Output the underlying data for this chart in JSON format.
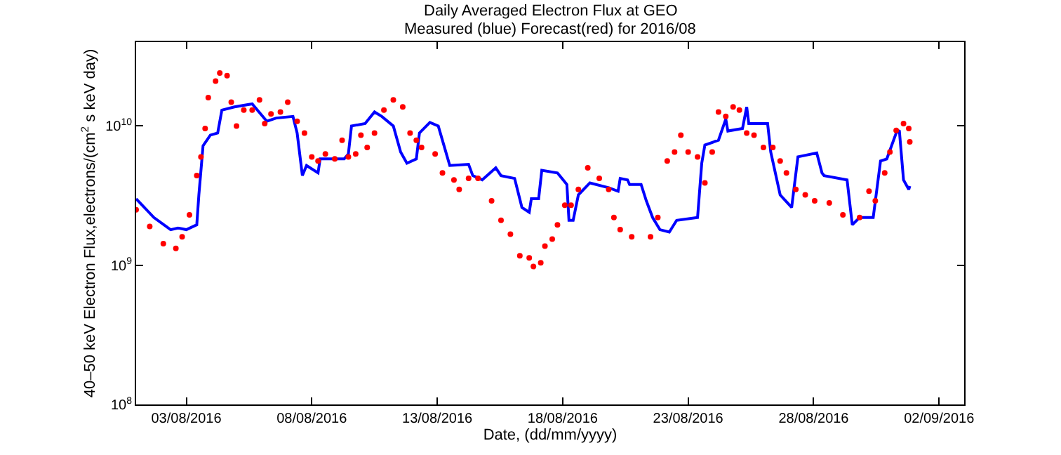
{
  "chart_data": {
    "type": "line",
    "title": "Daily Averaged Electron Flux at GEO",
    "subtitle": "Measured (blue) Forecast(red) for 2016/08",
    "xlabel": "Date, (dd/mm/yyyy)",
    "ylabel": "40–50 keV Electron Flux,electrons/(cm$^{2}$ s keV day)",
    "log": "y",
    "grid": false,
    "xlim": [
      "2016-08-01",
      "2016-09-03"
    ],
    "xticks": [
      {
        "value": "2016-08-03",
        "label": "03/08/2016"
      },
      {
        "value": "2016-08-08",
        "label": "08/08/2016"
      },
      {
        "value": "2016-08-13",
        "label": "13/08/2016"
      },
      {
        "value": "2016-08-18",
        "label": "18/08/2016"
      },
      {
        "value": "2016-08-23",
        "label": "23/08/2016"
      },
      {
        "value": "2016-08-28",
        "label": "28/08/2016"
      },
      {
        "value": "2016-09-02",
        "label": "02/09/2016"
      }
    ],
    "ylim": [
      100000000.0,
      40000000000.0
    ],
    "yticks": [
      {
        "value": 100000000.0,
        "label": "10$^{8}$"
      },
      {
        "value": 1000000000.0,
        "label": "10$^{9}$"
      },
      {
        "value": 10000000000.0,
        "label": "10$^{10}$"
      }
    ],
    "series": [
      {
        "color": "#0000ff",
        "line_style": "solid",
        "marker": "none",
        "x": [
          "2016-08-01T00:00",
          "2016-08-01T17:00",
          "2016-08-02T09:00",
          "2016-08-02T16:00",
          "2016-08-03T00:00",
          "2016-08-03T10:00",
          "2016-08-03T12:00",
          "2016-08-03T16:00",
          "2016-08-03T23:00",
          "2016-08-04T06:00",
          "2016-08-04T10:00",
          "2016-08-04T22:00",
          "2016-08-05T15:00",
          "2016-08-06T05:00",
          "2016-08-06T14:00",
          "2016-08-07T06:00",
          "2016-08-07T10:00",
          "2016-08-07T15:00",
          "2016-08-07T19:00",
          "2016-08-08T06:00",
          "2016-08-08T08:00",
          "2016-08-09T07:00",
          "2016-08-09T11:00",
          "2016-08-09T14:00",
          "2016-08-10T03:00",
          "2016-08-10T12:00",
          "2016-08-10T19:00",
          "2016-08-11T06:00",
          "2016-08-11T13:00",
          "2016-08-11T19:00",
          "2016-08-12T04:00",
          "2016-08-12T07:00",
          "2016-08-12T17:00",
          "2016-08-13T01:00",
          "2016-08-13T07:00",
          "2016-08-13T12:00",
          "2016-08-14T06:00",
          "2016-08-14T10:00",
          "2016-08-14T19:00",
          "2016-08-15T08:00",
          "2016-08-15T13:00",
          "2016-08-16T02:00",
          "2016-08-16T09:00",
          "2016-08-16T16:00",
          "2016-08-16T18:00",
          "2016-08-17T01:00",
          "2016-08-17T04:00",
          "2016-08-17T19:00",
          "2016-08-18T04:00",
          "2016-08-18T06:00",
          "2016-08-18T10:00",
          "2016-08-18T15:00",
          "2016-08-19T02:00",
          "2016-08-19T20:00",
          "2016-08-20T05:00",
          "2016-08-20T07:00",
          "2016-08-20T14:00",
          "2016-08-20T16:00",
          "2016-08-21T03:00",
          "2016-08-21T08:00",
          "2016-08-21T14:00",
          "2016-08-21T21:00",
          "2016-08-22T06:00",
          "2016-08-22T13:00",
          "2016-08-23T09:00",
          "2016-08-23T13:00",
          "2016-08-23T16:00",
          "2016-08-24T05:00",
          "2016-08-24T12:00",
          "2016-08-24T14:00",
          "2016-08-25T04:00",
          "2016-08-25T08:00",
          "2016-08-25T10:00",
          "2016-08-26T04:00",
          "2016-08-26T07:00",
          "2016-08-26T16:00",
          "2016-08-27T03:00",
          "2016-08-27T09:00",
          "2016-08-28T03:00",
          "2016-08-28T08:00",
          "2016-08-28T10:00",
          "2016-08-29T08:00",
          "2016-08-29T13:00",
          "2016-08-29T20:00",
          "2016-08-30T09:00",
          "2016-08-30T16:00",
          "2016-08-30T22:00",
          "2016-08-31T07:00",
          "2016-08-31T10:00",
          "2016-08-31T14:00",
          "2016-08-31T19:00",
          "2016-08-31T20:00"
        ],
        "values": [
          3000000000.0,
          2200000000.0,
          1800000000.0,
          1850000000.0,
          1800000000.0,
          1950000000.0,
          3200000000.0,
          7200000000.0,
          8600000000.0,
          8900000000.0,
          13000000000.0,
          13700000000.0,
          14400000000.0,
          10800000000.0,
          11400000000.0,
          11700000000.0,
          8900000000.0,
          4400000000.0,
          5200000000.0,
          4600000000.0,
          5800000000.0,
          5800000000.0,
          6300000000.0,
          10000000000.0,
          10400000000.0,
          12600000000.0,
          11700000000.0,
          10000000000.0,
          6500000000.0,
          5400000000.0,
          5800000000.0,
          8900000000.0,
          10600000000.0,
          10000000000.0,
          7000000000.0,
          5200000000.0,
          5300000000.0,
          4400000000.0,
          4100000000.0,
          5000000000.0,
          4400000000.0,
          4200000000.0,
          2600000000.0,
          2400000000.0,
          3000000000.0,
          3000000000.0,
          4800000000.0,
          4600000000.0,
          3800000000.0,
          2100000000.0,
          2100000000.0,
          3200000000.0,
          3900000000.0,
          3600000000.0,
          3400000000.0,
          4200000000.0,
          4100000000.0,
          3800000000.0,
          3800000000.0,
          2900000000.0,
          2200000000.0,
          1800000000.0,
          1730000000.0,
          2100000000.0,
          2200000000.0,
          5400000000.0,
          7300000000.0,
          7900000000.0,
          11200000000.0,
          9200000000.0,
          9600000000.0,
          13700000000.0,
          10400000000.0,
          10400000000.0,
          6500000000.0,
          3200000000.0,
          2600000000.0,
          6000000000.0,
          6400000000.0,
          4600000000.0,
          4400000000.0,
          4100000000.0,
          1950000000.0,
          2200000000.0,
          2200000000.0,
          5600000000.0,
          5800000000.0,
          8900000000.0,
          9300000000.0,
          4100000000.0,
          3500000000.0,
          3700000000.0
        ]
      },
      {
        "type": "scatter",
        "color": "#ff0000",
        "marker": "circle",
        "x": [
          "2016-08-01T00:00",
          "2016-08-01T13:00",
          "2016-08-02T02:00",
          "2016-08-02T14:00",
          "2016-08-02T20:00",
          "2016-08-03T03:00",
          "2016-08-03T10:00",
          "2016-08-03T14:00",
          "2016-08-03T18:00",
          "2016-08-03T21:00",
          "2016-08-04T04:00",
          "2016-08-04T08:00",
          "2016-08-04T15:00",
          "2016-08-04T19:00",
          "2016-08-05T00:00",
          "2016-08-05T07:00",
          "2016-08-05T15:00",
          "2016-08-05T22:00",
          "2016-08-06T03:00",
          "2016-08-06T09:00",
          "2016-08-06T18:00",
          "2016-08-07T01:00",
          "2016-08-07T10:00",
          "2016-08-07T17:00",
          "2016-08-08T00:00",
          "2016-08-08T06:00",
          "2016-08-08T13:00",
          "2016-08-08T22:00",
          "2016-08-09T05:00",
          "2016-08-09T11:00",
          "2016-08-09T18:00",
          "2016-08-09T23:00",
          "2016-08-10T05:00",
          "2016-08-10T12:00",
          "2016-08-10T21:00",
          "2016-08-11T06:00",
          "2016-08-11T15:00",
          "2016-08-11T22:00",
          "2016-08-12T04:00",
          "2016-08-12T09:00",
          "2016-08-12T22:00",
          "2016-08-13T05:00",
          "2016-08-13T16:00",
          "2016-08-13T21:00",
          "2016-08-14T06:00",
          "2016-08-14T15:00",
          "2016-08-15T04:00",
          "2016-08-15T13:00",
          "2016-08-15T22:00",
          "2016-08-16T07:00",
          "2016-08-16T16:00",
          "2016-08-16T20:00",
          "2016-08-17T03:00",
          "2016-08-17T07:00",
          "2016-08-17T14:00",
          "2016-08-17T19:00",
          "2016-08-18T02:00",
          "2016-08-18T08:00",
          "2016-08-18T15:00",
          "2016-08-19T00:00",
          "2016-08-19T11:00",
          "2016-08-19T20:00",
          "2016-08-20T01:00",
          "2016-08-20T07:00",
          "2016-08-20T18:00",
          "2016-08-21T12:00",
          "2016-08-21T19:00",
          "2016-08-22T04:00",
          "2016-08-22T11:00",
          "2016-08-22T17:00",
          "2016-08-23T00:00",
          "2016-08-23T09:00",
          "2016-08-23T16:00",
          "2016-08-23T23:00",
          "2016-08-24T05:00",
          "2016-08-24T12:00",
          "2016-08-24T19:00",
          "2016-08-25T01:00",
          "2016-08-25T08:00",
          "2016-08-25T15:00",
          "2016-08-26T00:00",
          "2016-08-26T09:00",
          "2016-08-26T16:00",
          "2016-08-26T22:00",
          "2016-08-27T07:00",
          "2016-08-27T16:00",
          "2016-08-28T01:00",
          "2016-08-28T15:00",
          "2016-08-29T04:00",
          "2016-08-29T20:00",
          "2016-08-30T05:00",
          "2016-08-30T11:00",
          "2016-08-30T20:00",
          "2016-08-31T01:00",
          "2016-08-31T07:00",
          "2016-08-31T14:00",
          "2016-08-31T19:00",
          "2016-08-31T20:00"
        ],
        "values": [
          2500000000.0,
          1900000000.0,
          1430000000.0,
          1320000000.0,
          1600000000.0,
          2300000000.0,
          4400000000.0,
          6000000000.0,
          9600000000.0,
          16000000000.0,
          21000000000.0,
          24000000000.0,
          23000000000.0,
          14800000000.0,
          10000000000.0,
          13000000000.0,
          13000000000.0,
          15400000000.0,
          10400000000.0,
          12200000000.0,
          12600000000.0,
          14800000000.0,
          10800000000.0,
          8900000000.0,
          6000000000.0,
          5600000000.0,
          6300000000.0,
          5800000000.0,
          7900000000.0,
          6000000000.0,
          6300000000.0,
          8600000000.0,
          7000000000.0,
          8900000000.0,
          13000000000.0,
          15400000000.0,
          13700000000.0,
          8900000000.0,
          7900000000.0,
          7000000000.0,
          6300000000.0,
          4600000000.0,
          4100000000.0,
          3500000000.0,
          4200000000.0,
          4200000000.0,
          2900000000.0,
          2100000000.0,
          1670000000.0,
          1170000000.0,
          1130000000.0,
          980000000.0,
          1040000000.0,
          1370000000.0,
          1540000000.0,
          1950000000.0,
          2700000000.0,
          2700000000.0,
          3500000000.0,
          5000000000.0,
          4200000000.0,
          3500000000.0,
          2200000000.0,
          1800000000.0,
          1600000000.0,
          1600000000.0,
          2200000000.0,
          5600000000.0,
          6500000000.0,
          8600000000.0,
          6500000000.0,
          6000000000.0,
          3900000000.0,
          6500000000.0,
          12600000000.0,
          11700000000.0,
          13700000000.0,
          13000000000.0,
          8900000000.0,
          8600000000.0,
          7000000000.0,
          7000000000.0,
          5600000000.0,
          4600000000.0,
          3500000000.0,
          3200000000.0,
          2900000000.0,
          2800000000.0,
          2300000000.0,
          2200000000.0,
          3400000000.0,
          2900000000.0,
          4600000000.0,
          6500000000.0,
          9300000000.0,
          10400000000.0,
          9600000000.0,
          7700000000.0
        ]
      }
    ]
  }
}
